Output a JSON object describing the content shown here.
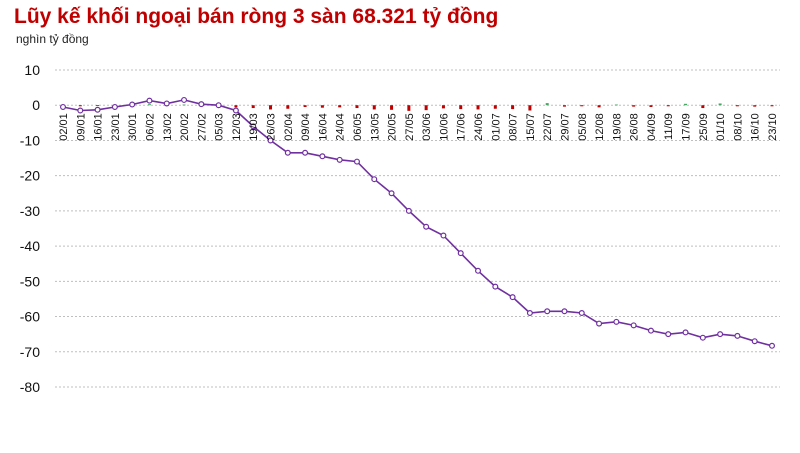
{
  "chart_data": {
    "type": "line",
    "title": "Lũy kế khối ngoại bán ròng 3 sàn 68.321 tỷ đồng",
    "unit_label": "nghìn tỷ đồng",
    "xlabel": "",
    "ylabel": "",
    "ylim": [
      -80,
      10
    ],
    "yticks": [
      10,
      0,
      -10,
      -20,
      -30,
      -40,
      -50,
      -60,
      -70,
      -80
    ],
    "grid": "horizontal dashed",
    "legend": "none",
    "x_tick_labels": [
      "02/01",
      "09/01",
      "16/01",
      "23/01",
      "30/01",
      "06/02",
      "13/02",
      "20/02",
      "27/02",
      "05/03",
      "12/03",
      "19/03",
      "26/03",
      "02/04",
      "09/04",
      "16/04",
      "24/04",
      "06/05",
      "13/05",
      "20/05",
      "27/05",
      "03/06",
      "10/06",
      "17/06",
      "24/06",
      "01/07",
      "08/07",
      "15/07",
      "22/07",
      "29/07",
      "05/08",
      "12/08",
      "19/08",
      "26/08",
      "04/09",
      "11/09",
      "17/09",
      "25/09",
      "01/10",
      "08/10",
      "16/10",
      "23/10"
    ],
    "series": [
      {
        "kind": "line",
        "color": "#7030a0",
        "marker_fill": "#ffffff",
        "x": [
          "02/01",
          "09/01",
          "16/01",
          "23/01",
          "30/01",
          "06/02",
          "13/02",
          "20/02",
          "27/02",
          "05/03",
          "12/03",
          "19/03",
          "26/03",
          "02/04",
          "09/04",
          "16/04",
          "24/04",
          "06/05",
          "13/05",
          "20/05",
          "27/05",
          "03/06",
          "10/06",
          "17/06",
          "24/06",
          "01/07",
          "08/07",
          "15/07",
          "22/07",
          "29/07",
          "05/08",
          "12/08",
          "19/08",
          "26/08",
          "04/09",
          "11/09",
          "17/09",
          "25/09",
          "01/10",
          "08/10",
          "16/10",
          "23/10"
        ],
        "values": [
          -0.5,
          -1.5,
          -1.3,
          -0.5,
          0.2,
          1.3,
          0.5,
          1.5,
          0.3,
          0,
          -1.5,
          -6,
          -10,
          -13.5,
          -13.5,
          -14.5,
          -15.5,
          -16,
          -21,
          -25,
          -30,
          -34.5,
          -37,
          -42,
          -47,
          -51.5,
          -54.5,
          -59,
          -58.5,
          -58.5,
          -59,
          -62,
          -61.5,
          -62.5,
          -64,
          -65,
          -64.5,
          -66,
          -65,
          -65.5,
          -67,
          -68.3
        ]
      },
      {
        "kind": "bar",
        "name": "daily",
        "color_negative": "#c00000",
        "color_positive": "#4aa564",
        "values": [
          -0.2,
          -0.3,
          -0.1,
          0.1,
          0.2,
          0.3,
          -0.2,
          0.2,
          -0.2,
          -0.4,
          -0.6,
          -0.8,
          -1.2,
          -1.0,
          -0.5,
          -0.7,
          -0.6,
          -0.8,
          -1.2,
          -1.3,
          -1.6,
          -1.4,
          -0.9,
          -1.1,
          -1.2,
          -1.0,
          -1.1,
          -1.5,
          0.6,
          -0.4,
          -0.3,
          -0.6,
          0.2,
          -0.4,
          -0.5,
          -0.3,
          0.4,
          -0.8,
          0.5,
          -0.3,
          -0.4,
          -0.3
        ]
      }
    ]
  }
}
